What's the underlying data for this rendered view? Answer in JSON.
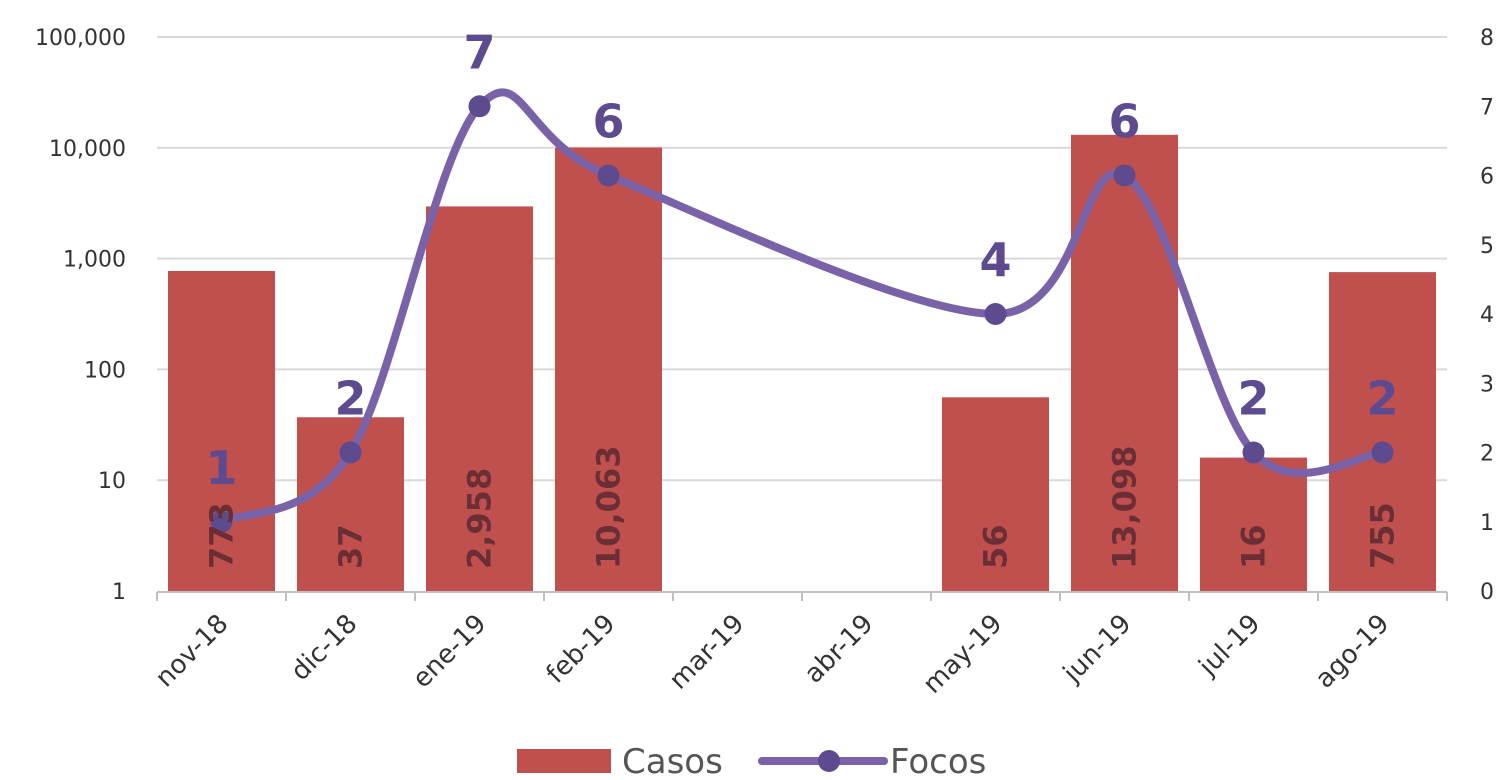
{
  "chart_data": {
    "type": "bar",
    "categories": [
      "nov-18",
      "dic-18",
      "ene-19",
      "feb-19",
      "mar-19",
      "abr-19",
      "may-19",
      "jun-19",
      "jul-19",
      "ago-19"
    ],
    "series": [
      {
        "name": "Casos",
        "kind": "bar",
        "axis": "left",
        "values": [
          773,
          37,
          2958,
          10063,
          null,
          null,
          56,
          13098,
          16,
          755
        ],
        "labels": [
          "773",
          "37",
          "2,958",
          "10,063",
          "",
          "",
          "56",
          "13,098",
          "16",
          "755"
        ],
        "color": "#c0504d"
      },
      {
        "name": "Focos",
        "kind": "line",
        "axis": "right",
        "values": [
          1,
          2,
          7,
          6,
          null,
          null,
          4,
          6,
          2,
          2
        ],
        "labels": [
          "1",
          "2",
          "7",
          "6",
          "",
          "",
          "4",
          "6",
          "2",
          "2"
        ],
        "color": "#7a62a8"
      }
    ],
    "y_left": {
      "scale": "log",
      "ylim": [
        1,
        100000
      ],
      "ticks": [
        1,
        10,
        100,
        1000,
        10000,
        100000
      ],
      "tick_labels": [
        "1",
        "10",
        "100",
        "1,000",
        "10,000",
        "100,000"
      ]
    },
    "y_right": {
      "scale": "linear",
      "ylim": [
        0,
        8
      ],
      "ticks": [
        0,
        1,
        2,
        3,
        4,
        5,
        6,
        7,
        8
      ],
      "tick_labels": [
        "0",
        "1",
        "2",
        "3",
        "4",
        "5",
        "6",
        "7",
        "8"
      ]
    },
    "title": "",
    "xlabel": "",
    "ylabel": "",
    "grid": true,
    "legend": {
      "position": "bottom",
      "entries": [
        "Casos",
        "Focos"
      ]
    }
  }
}
